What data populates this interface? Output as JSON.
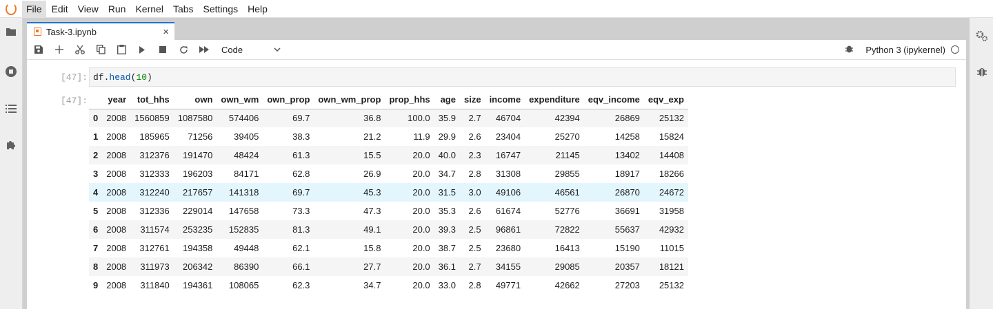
{
  "menu": [
    "File",
    "Edit",
    "View",
    "Run",
    "Kernel",
    "Tabs",
    "Settings",
    "Help"
  ],
  "tab": {
    "title": "Task-3.ipynb",
    "close": "×"
  },
  "toolbar": {
    "cell_type": "Code",
    "kernel_name": "Python 3 (ipykernel)"
  },
  "cell": {
    "in_prompt": "[47]:",
    "out_prompt": "[47]:",
    "code_obj": "df.",
    "code_fn": "head",
    "code_open": "(",
    "code_arg": "10",
    "code_close": ")"
  },
  "table": {
    "columns": [
      "",
      "year",
      "tot_hhs",
      "own",
      "own_wm",
      "own_prop",
      "own_wm_prop",
      "prop_hhs",
      "age",
      "size",
      "income",
      "expenditure",
      "eqv_income",
      "eqv_exp"
    ],
    "rows": [
      [
        "0",
        "2008",
        "1560859",
        "1087580",
        "574406",
        "69.7",
        "36.8",
        "100.0",
        "35.9",
        "2.7",
        "46704",
        "42394",
        "26869",
        "25132"
      ],
      [
        "1",
        "2008",
        "185965",
        "71256",
        "39405",
        "38.3",
        "21.2",
        "11.9",
        "29.9",
        "2.6",
        "23404",
        "25270",
        "14258",
        "15824"
      ],
      [
        "2",
        "2008",
        "312376",
        "191470",
        "48424",
        "61.3",
        "15.5",
        "20.0",
        "40.0",
        "2.3",
        "16747",
        "21145",
        "13402",
        "14408"
      ],
      [
        "3",
        "2008",
        "312333",
        "196203",
        "84171",
        "62.8",
        "26.9",
        "20.0",
        "34.7",
        "2.8",
        "31308",
        "29855",
        "18917",
        "18266"
      ],
      [
        "4",
        "2008",
        "312240",
        "217657",
        "141318",
        "69.7",
        "45.3",
        "20.0",
        "31.5",
        "3.0",
        "49106",
        "46561",
        "26870",
        "24672"
      ],
      [
        "5",
        "2008",
        "312336",
        "229014",
        "147658",
        "73.3",
        "47.3",
        "20.0",
        "35.3",
        "2.6",
        "61674",
        "52776",
        "36691",
        "31958"
      ],
      [
        "6",
        "2008",
        "311574",
        "253235",
        "152835",
        "81.3",
        "49.1",
        "20.0",
        "39.3",
        "2.5",
        "96861",
        "72822",
        "55637",
        "42932"
      ],
      [
        "7",
        "2008",
        "312761",
        "194358",
        "49448",
        "62.1",
        "15.8",
        "20.0",
        "38.7",
        "2.5",
        "23680",
        "16413",
        "15190",
        "11015"
      ],
      [
        "8",
        "2008",
        "311973",
        "206342",
        "86390",
        "66.1",
        "27.7",
        "20.0",
        "36.1",
        "2.7",
        "34155",
        "29085",
        "20357",
        "18121"
      ],
      [
        "9",
        "2008",
        "311840",
        "194361",
        "108065",
        "62.3",
        "34.7",
        "20.0",
        "33.0",
        "2.8",
        "49771",
        "42662",
        "27203",
        "25132"
      ]
    ],
    "highlighted_row": 4
  },
  "colors": {
    "accent": "#1976d2",
    "jupyter_orange": "#f37726",
    "row_highlight": "#e3f6fd"
  }
}
